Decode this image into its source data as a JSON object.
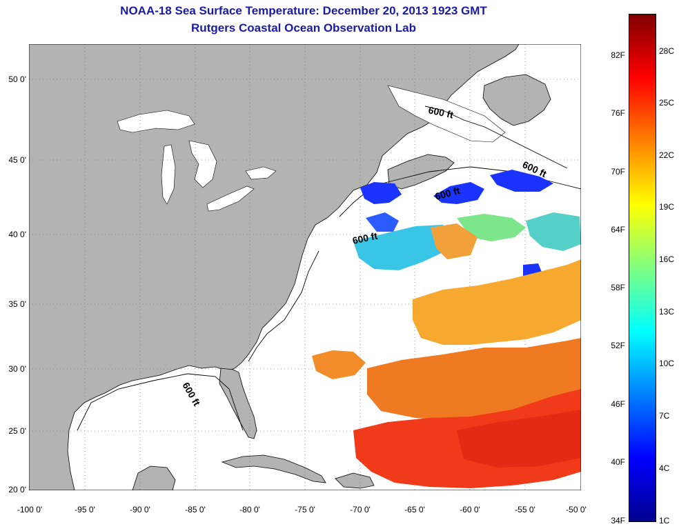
{
  "header": {
    "title": "NOAA-18 Sea Surface Temperature:  December 20, 2013 1923 GMT",
    "subtitle": "Rutgers Coastal Ocean Observation Lab"
  },
  "map": {
    "lon_range": [
      -100,
      -50
    ],
    "lat_range": [
      20,
      52.5
    ],
    "land_color": "#b3b3b3",
    "ocean_color": "#ffffff",
    "gridlines": "dotted",
    "y_ticks": [
      "50 0'",
      "45 0'",
      "40 0'",
      "35 0'",
      "30 0'",
      "25 0'",
      "20 0'"
    ],
    "x_ticks": [
      "-100 0'",
      "-95 0'",
      "-90 0'",
      "-85 0'",
      "-80 0'",
      "-75 0'",
      "-70 0'",
      "-65 0'",
      "-60 0'",
      "-55 0'",
      "-50 0'"
    ],
    "isobath_labels": [
      "600 ft",
      "600 ft",
      "600 ft",
      "600 ft",
      "600 ft"
    ]
  },
  "colorbar": {
    "fahrenheit_labels": [
      "82F",
      "76F",
      "70F",
      "64F",
      "58F",
      "52F",
      "46F",
      "40F",
      "34F"
    ],
    "celsius_labels": [
      "28C",
      "25C",
      "22C",
      "19C",
      "16C",
      "13C",
      "10C",
      "7C",
      "4C",
      "1C"
    ],
    "colors": [
      "#800000",
      "#ff0000",
      "#ff8000",
      "#ffff00",
      "#80ff80",
      "#00ffff",
      "#0080ff",
      "#0000ff",
      "#00008f"
    ]
  }
}
